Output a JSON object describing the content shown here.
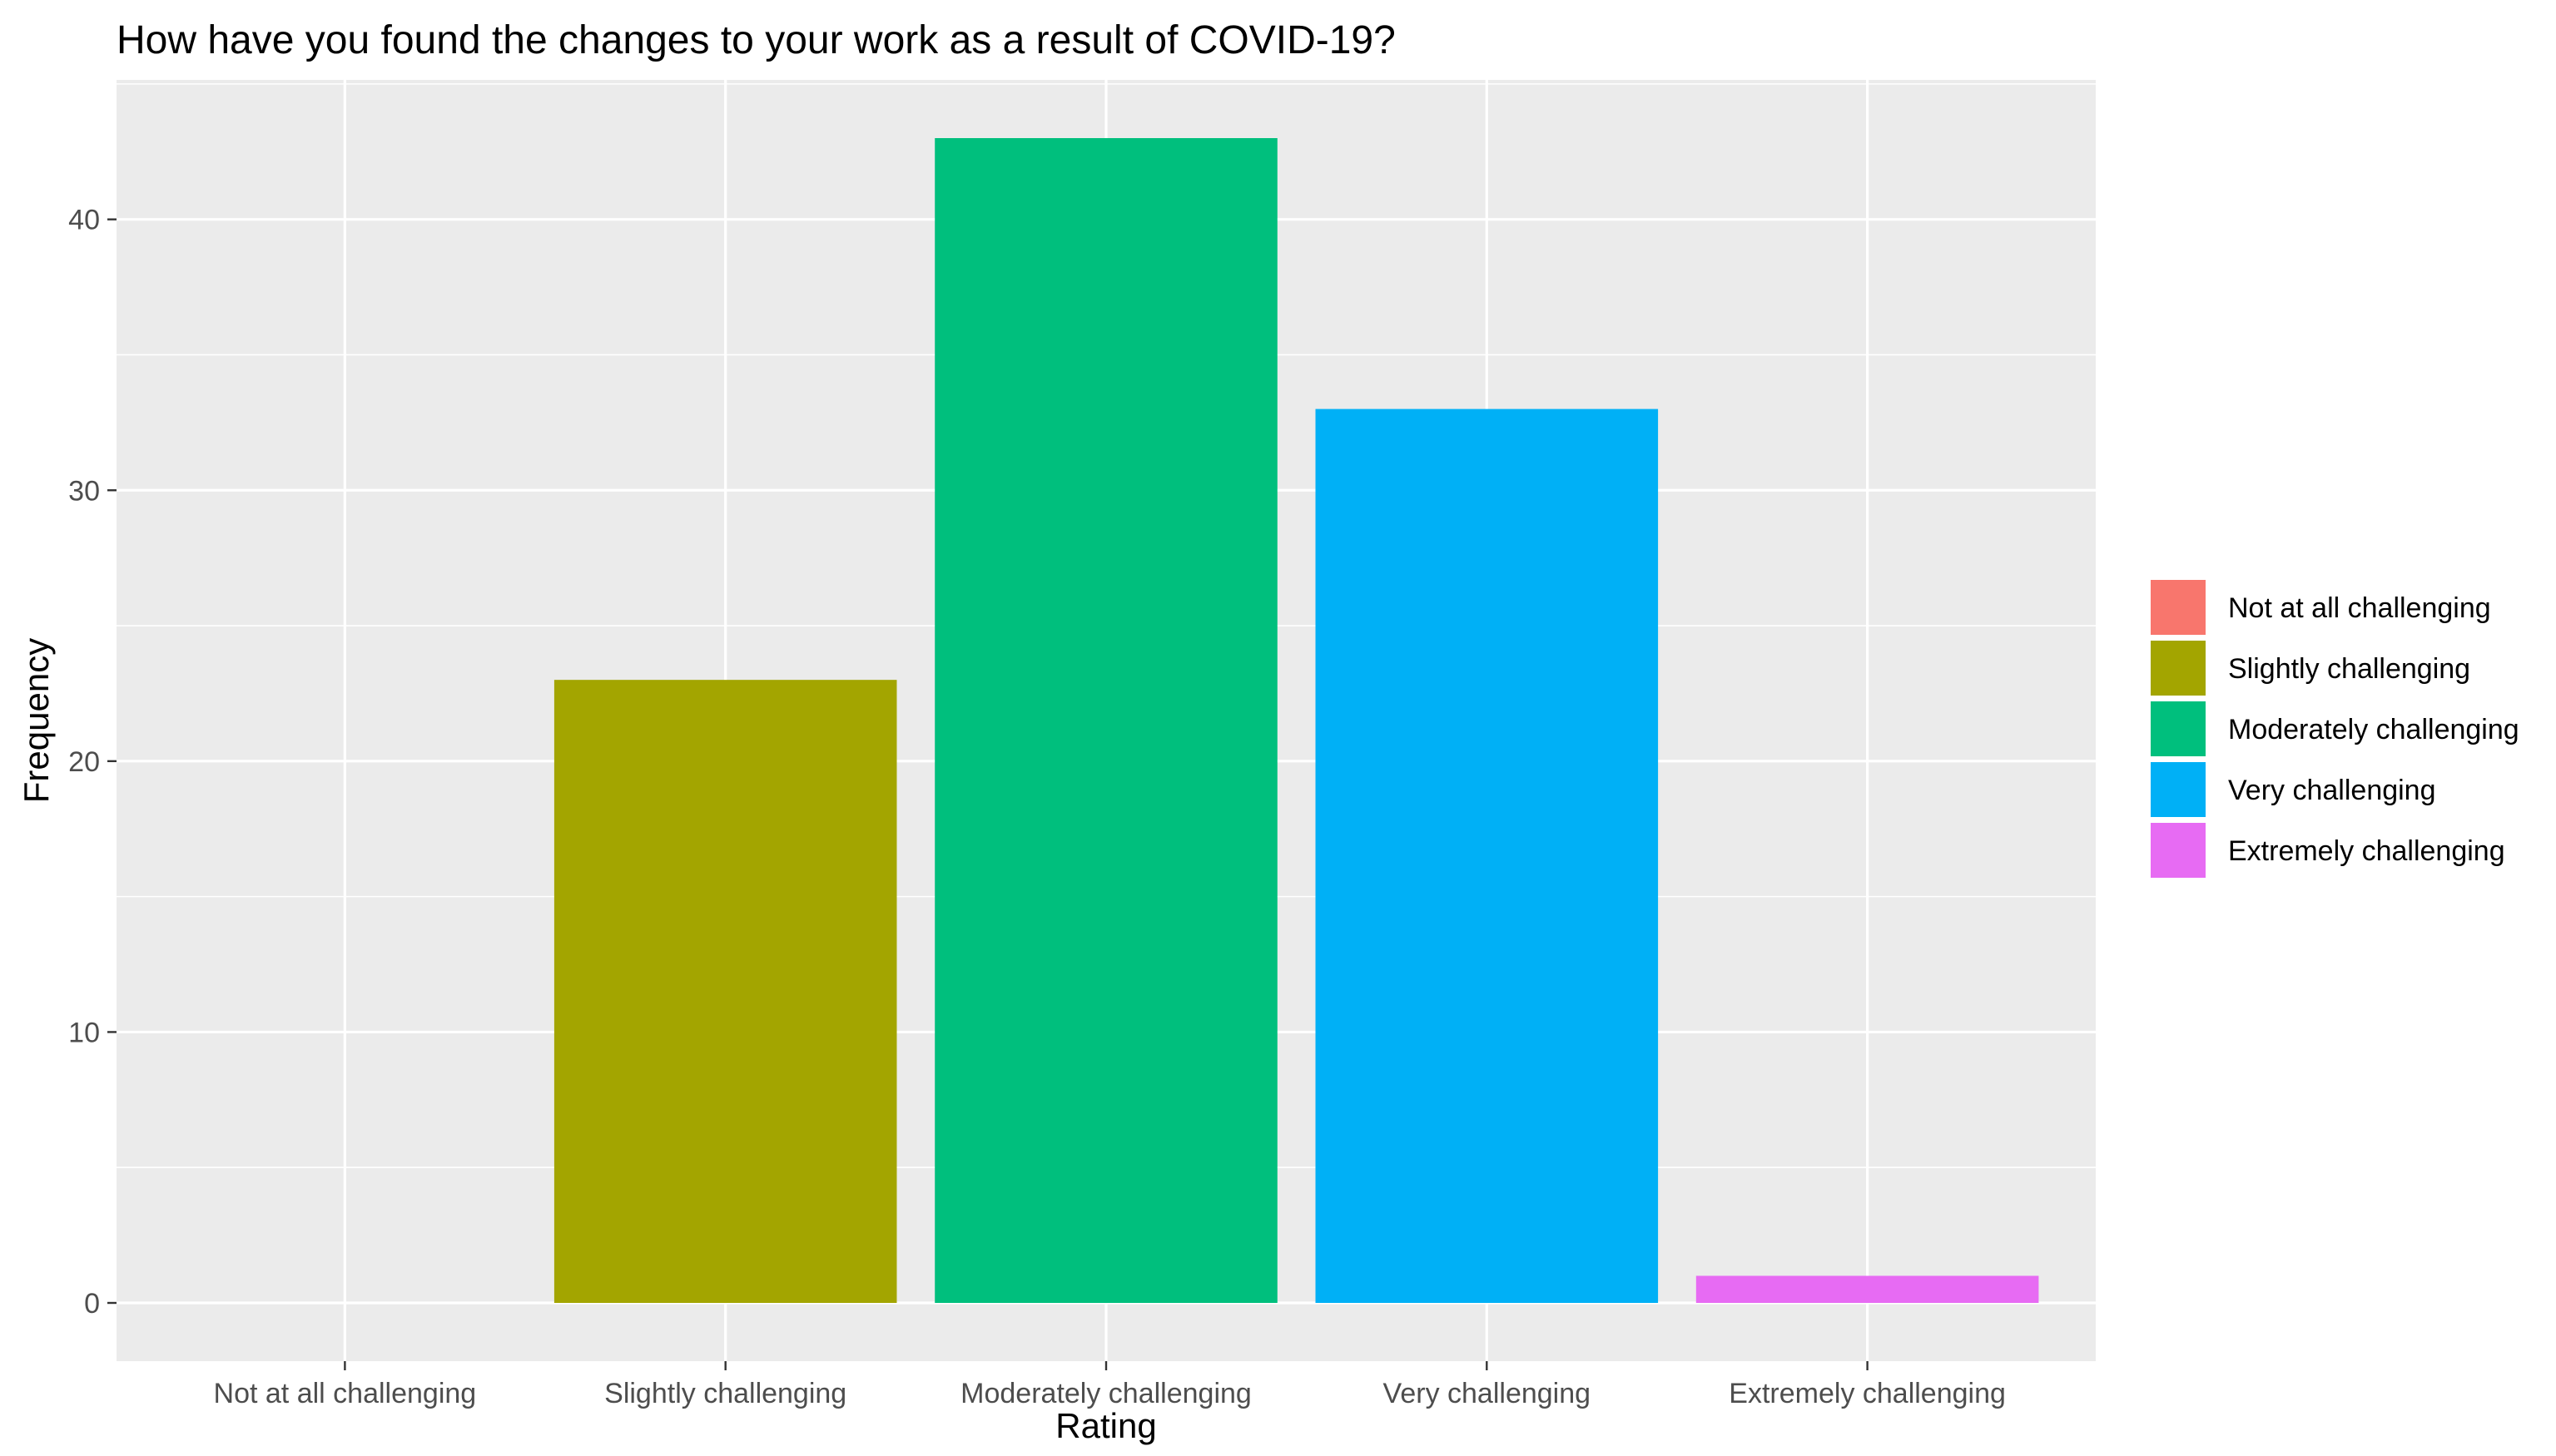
{
  "chart_data": {
    "type": "bar",
    "title": "How have you found the changes to your work as a result of COVID-19?",
    "xlabel": "Rating",
    "ylabel": "Frequency",
    "categories": [
      "Not at all challenging",
      "Slightly challenging",
      "Moderately challenging",
      "Very challenging",
      "Extremely challenging"
    ],
    "values": [
      0,
      23,
      43,
      33,
      1
    ],
    "colors": [
      "#F8766D",
      "#A3A500",
      "#00BF7D",
      "#00B0F6",
      "#E76BF3"
    ],
    "ylim": [
      -2.15,
      45.15
    ],
    "yticks": [
      0,
      10,
      20,
      30,
      40
    ],
    "grid": true,
    "legend": {
      "position": "right",
      "entries": [
        "Not at all challenging",
        "Slightly challenging",
        "Moderately challenging",
        "Very challenging",
        "Extremely challenging"
      ]
    }
  }
}
